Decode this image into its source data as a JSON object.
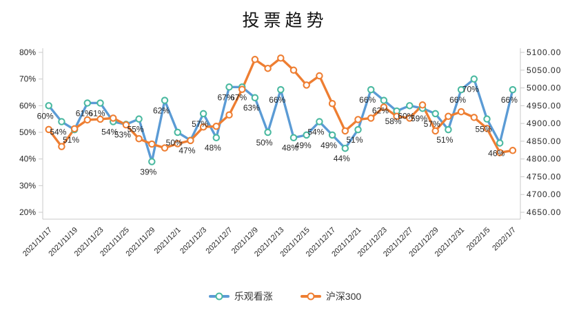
{
  "title": "投票趋势",
  "legend": [
    {
      "name": "乐观看涨",
      "line_color": "#5b9bd5",
      "marker_color": "#4ab9a0"
    },
    {
      "name": "沪深300",
      "line_color": "#ee7e32",
      "marker_color": "#ee7e32"
    }
  ],
  "chart_data": {
    "type": "line",
    "title": "投票趋势",
    "x": [
      "2021/11/17",
      "2021/11/18",
      "2021/11/19",
      "2021/11/22",
      "2021/11/23",
      "2021/11/24",
      "2021/11/25",
      "2021/11/26",
      "2021/11/29",
      "2021/11/30",
      "2021/12/1",
      "2021/12/2",
      "2021/12/3",
      "2021/12/6",
      "2021/12/7",
      "2021/12/8",
      "2021/12/9",
      "2021/12/10",
      "2021/12/13",
      "2021/12/14",
      "2021/12/15",
      "2021/12/16",
      "2021/12/17",
      "2021/12/20",
      "2021/12/21",
      "2021/12/22",
      "2021/12/23",
      "2021/12/24",
      "2021/12/27",
      "2021/12/28",
      "2021/12/29",
      "2021/12/30",
      "2021/12/31",
      "2022/1/4",
      "2022/1/5",
      "2022/1/6",
      "2022/1/7"
    ],
    "x_tick_labels": [
      "2021/11/17",
      "2021/11/19",
      "2021/11/23",
      "2021/11/25",
      "2021/11/29",
      "2021/12/1",
      "2021/12/3",
      "2021/12/7",
      "2021/12/9",
      "2021/12/13",
      "2021/12/15",
      "2021/12/17",
      "2021/12/21",
      "2021/12/23",
      "2021/12/27",
      "2021/12/29",
      "2021/12/31",
      "2022/1/5",
      "2022/1/7"
    ],
    "x_tick_every": 2,
    "series": [
      {
        "name": "乐观看涨",
        "axis": "left",
        "color": "#5b9bd5",
        "marker_ring": "#4ab9a0",
        "values": [
          60,
          54,
          51,
          61,
          61,
          54,
          53,
          55,
          39,
          62,
          50,
          47,
          57,
          48,
          67,
          67,
          63,
          50,
          66,
          48,
          49,
          54,
          49,
          44,
          51,
          66,
          62,
          58,
          60,
          59,
          57,
          51,
          66,
          70,
          55,
          46,
          66
        ],
        "data_labels": [
          "60%",
          "54%",
          "51%",
          "61%",
          "61%",
          "54%",
          "53%",
          "55%",
          "39%",
          "62%",
          "50%",
          "47%",
          "57%",
          "48%",
          "67%",
          "67%",
          "63%",
          "50%",
          "66%",
          "48%",
          "49%",
          "54%",
          "49%",
          "44%",
          "51%",
          "66%",
          "62%",
          "58%",
          "60%",
          "59%",
          "57%",
          "51%",
          "66%",
          "70%",
          "55%",
          "46%",
          "66%"
        ]
      },
      {
        "name": "沪深300",
        "axis": "right",
        "color": "#ee7e32",
        "marker_ring": "#ee7e32",
        "values": [
          4883,
          4835,
          4885,
          4910,
          4912,
          4915,
          4896,
          4857,
          4842,
          4831,
          4843,
          4852,
          4890,
          4892,
          4924,
          4996,
          5080,
          5055,
          5084,
          5050,
          5008,
          5034,
          4956,
          4879,
          4911,
          4915,
          4946,
          4920,
          4915,
          4952,
          4879,
          4920,
          4933,
          4917,
          4886,
          4818,
          4824
        ],
        "data_labels": []
      }
    ],
    "left_axis": {
      "min": 20,
      "max": 80,
      "ticks": [
        "80%",
        "70%",
        "60%",
        "50%",
        "40%",
        "30%",
        "20%"
      ]
    },
    "right_axis": {
      "min": 4650,
      "max": 5100,
      "ticks": [
        "5100.00",
        "5050.00",
        "5000.00",
        "4950.00",
        "4900.00",
        "4850.00",
        "4800.00",
        "4750.00",
        "4700.00",
        "4650.00"
      ]
    },
    "grid": false,
    "legend_position": "bottom"
  }
}
